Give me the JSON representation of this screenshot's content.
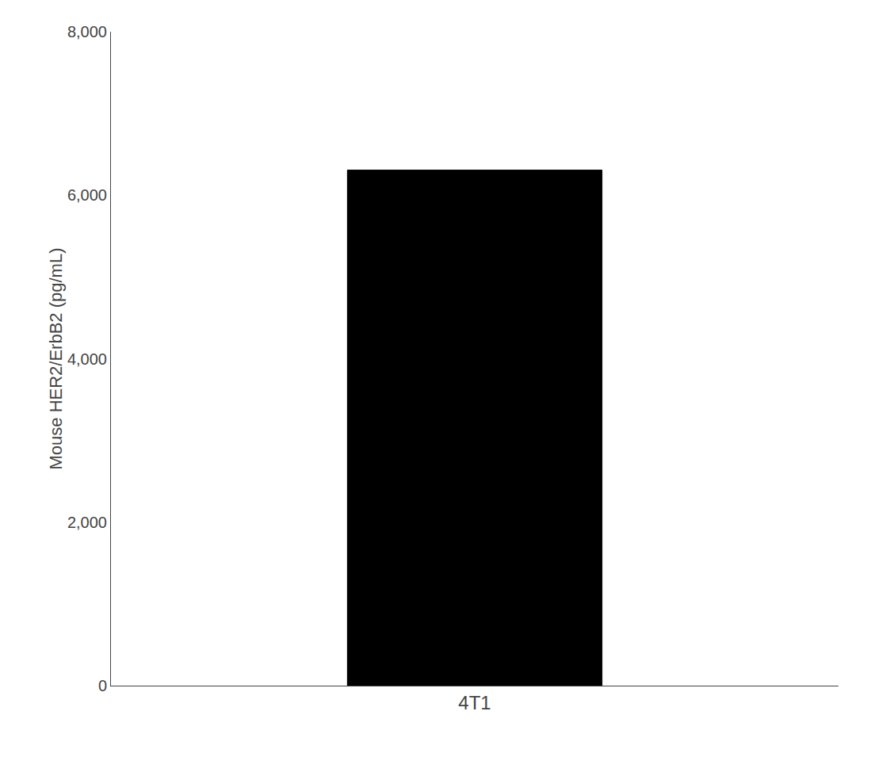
{
  "chart_data": {
    "type": "bar",
    "categories": [
      "4T1"
    ],
    "values": [
      6307.1
    ],
    "color": "#000000",
    "ylabel": "Mouse HER2/ErbB2 (pg/mL)",
    "ylim": [
      0,
      8000
    ],
    "yticks": [
      0,
      {
        "value": 2000,
        "label": "2,000"
      },
      {
        "value": 4000,
        "label": "4,000"
      },
      {
        "value": 6000,
        "label": "6,000"
      },
      {
        "value": 8000,
        "label": "8,000"
      }
    ],
    "grid": false
  }
}
